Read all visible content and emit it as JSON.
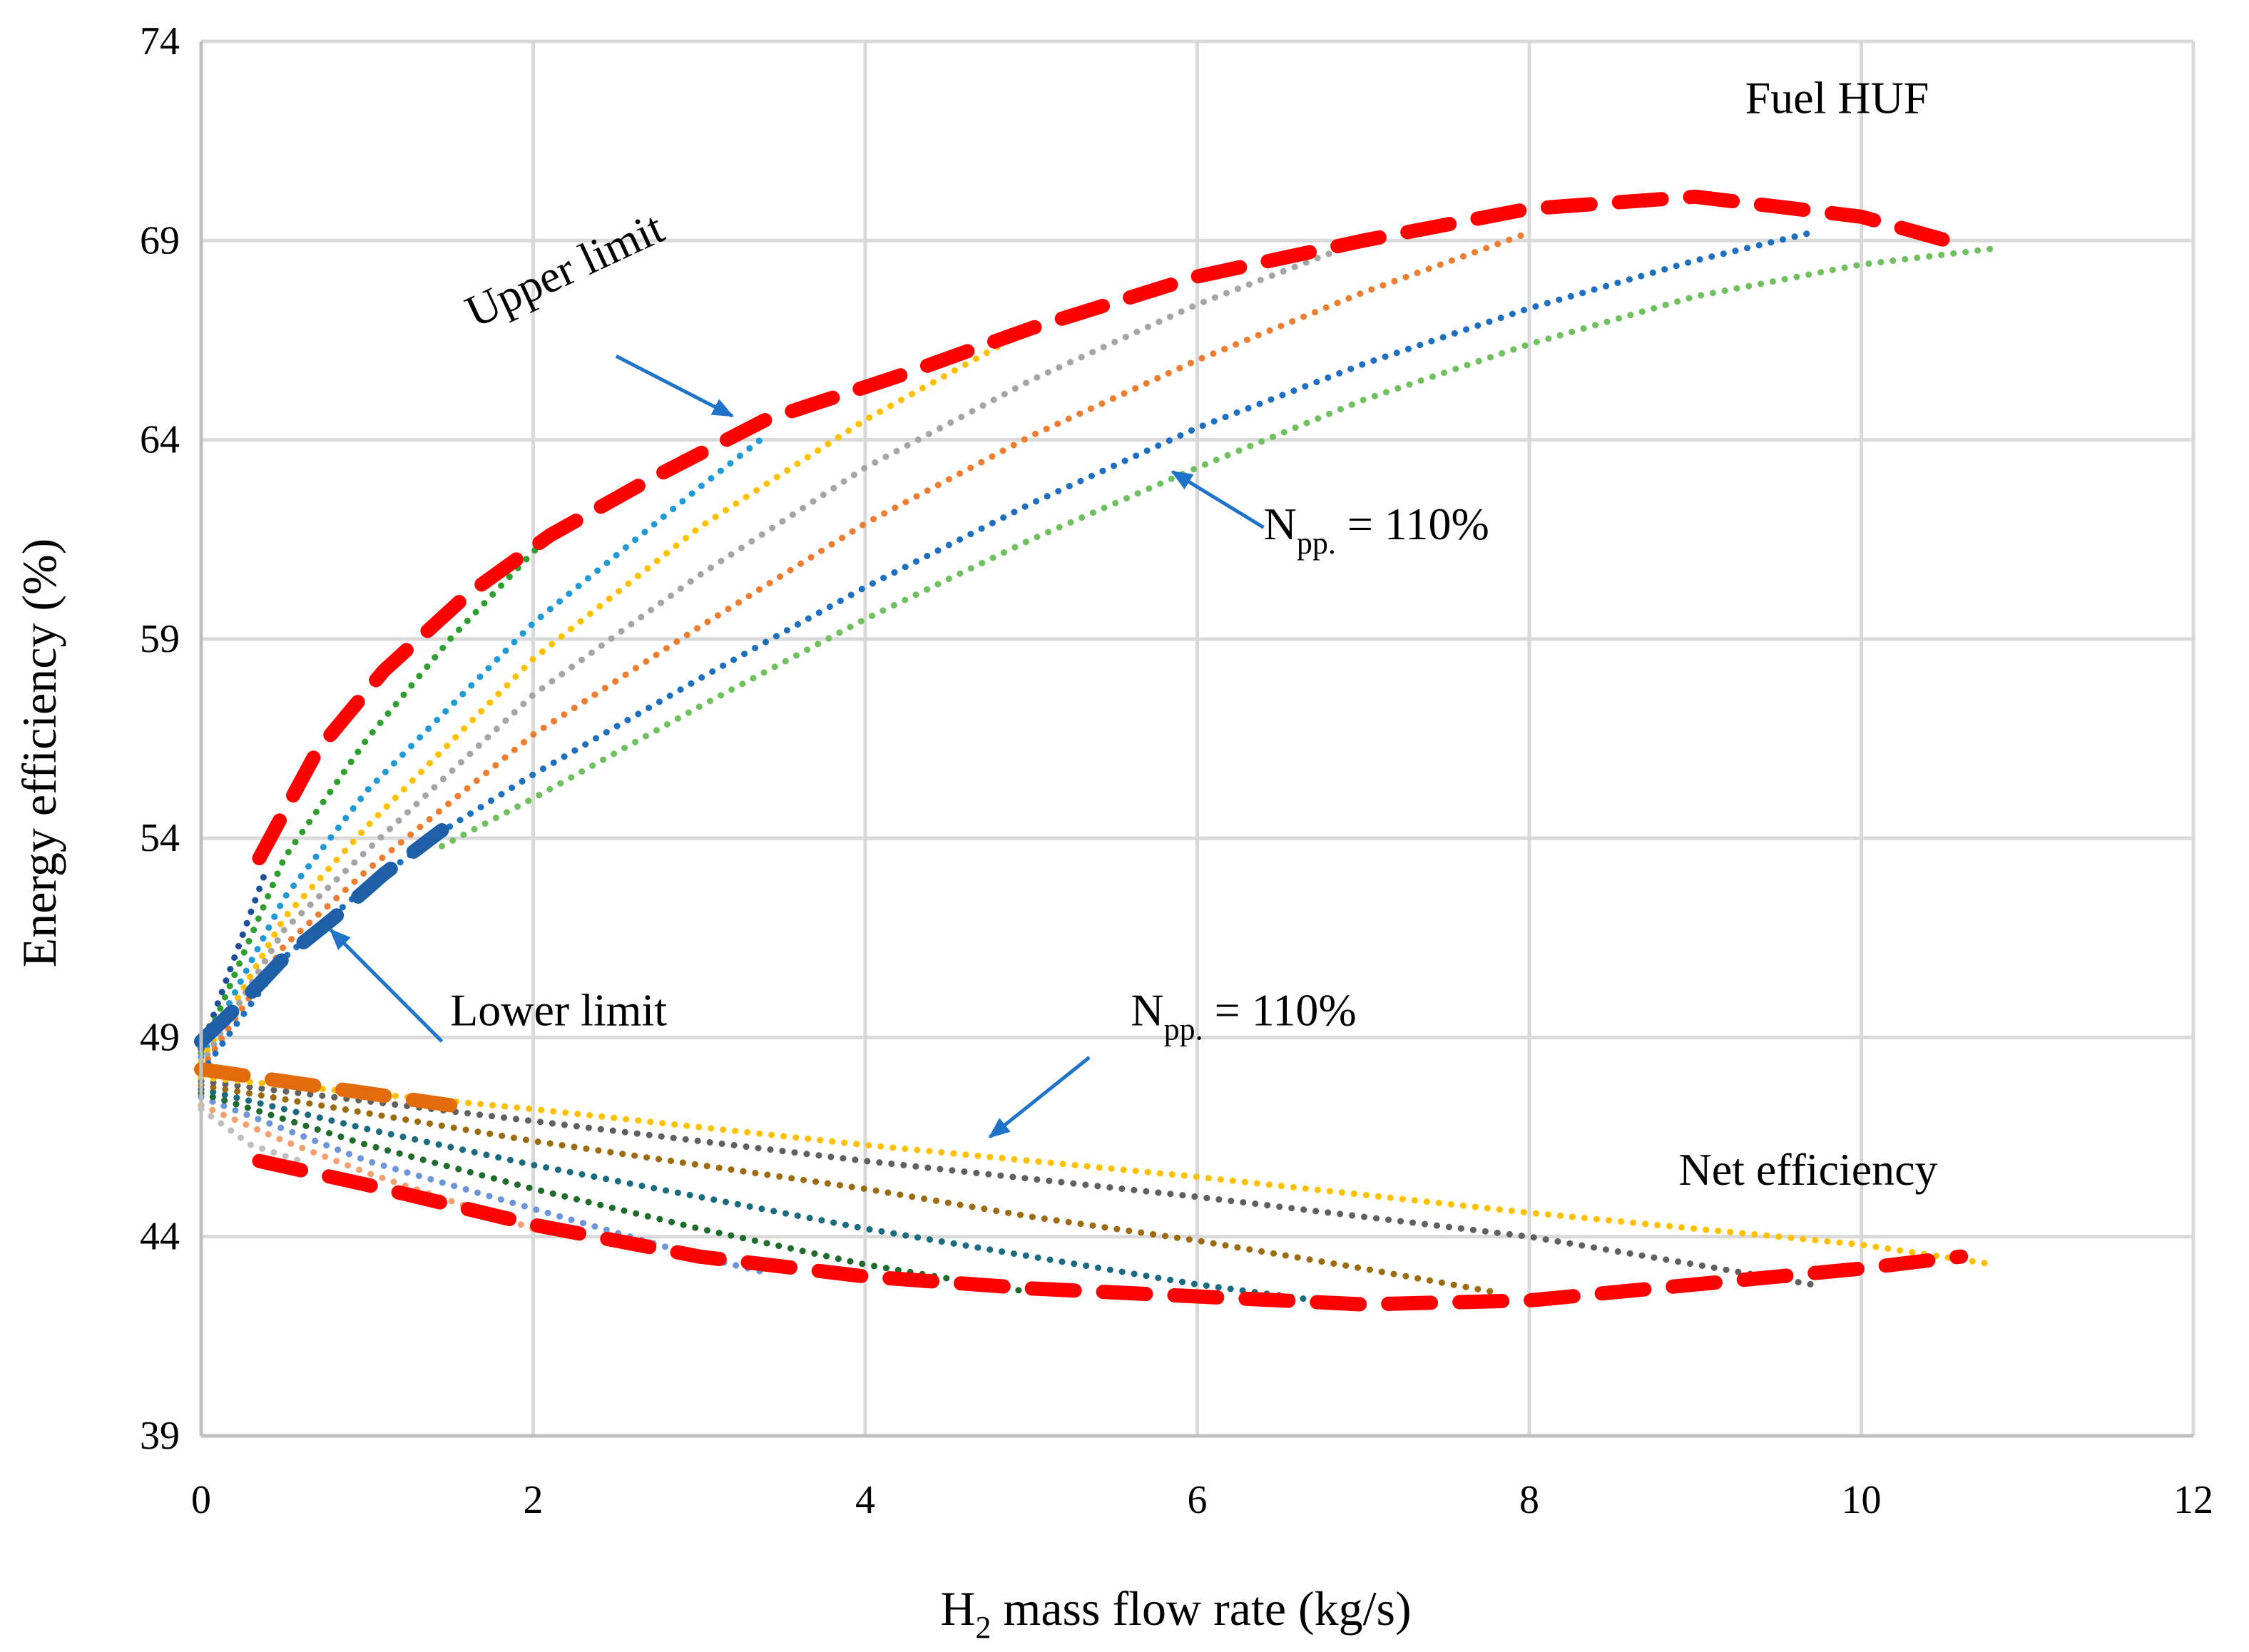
{
  "chart_data": {
    "type": "line",
    "xlabel": {
      "main": "H",
      "sub": "2",
      "rest": " mass flow rate (kg/s)"
    },
    "ylabel": "Energy efficiency (%)",
    "xlim": [
      0,
      12
    ],
    "ylim": [
      39,
      74
    ],
    "xticks": [
      0,
      2,
      4,
      6,
      8,
      10,
      12
    ],
    "yticks": [
      39,
      44,
      49,
      54,
      59,
      64,
      69,
      74
    ],
    "grid": true,
    "colors": {
      "green": "#2e9e2e",
      "skyblue": "#1f9ad6",
      "yellow": "#ffc000",
      "gray": "#a5a5a5",
      "orange": "#ed7d31",
      "blue": "#1f6fc0",
      "lightgreen": "#70c060",
      "navy": "#1f4e99",
      "darkgreen": "#1e6b2c",
      "brown": "#9c6b10",
      "darkgray": "#606060",
      "salmon": "#f4a070",
      "cornflower": "#6f94d8",
      "lightgray": "#bfbfbf",
      "teal": "#1a6a80",
      "red": "#ff0000",
      "darkorange": "#e36c0a",
      "steelblue": "#1e5fa8",
      "arrow": "#1f73c8"
    },
    "series": [
      {
        "name": "Fuel HUF navy",
        "group": "Fuel HUF",
        "color": "navy",
        "style": "dotted",
        "x": [
          0,
          0.2,
          0.4
        ],
        "y": [
          48.7,
          51,
          53.3
        ]
      },
      {
        "name": "Fuel HUF green",
        "group": "Fuel HUF",
        "color": "green",
        "style": "dotted",
        "x": [
          0,
          0.5,
          1,
          1.5,
          2.05
        ],
        "y": [
          48.6,
          53.5,
          56.5,
          59.0,
          61.4
        ]
      },
      {
        "name": "Fuel HUF skyblue",
        "group": "Fuel HUF",
        "color": "skyblue",
        "style": "dotted",
        "x": [
          0,
          0.5,
          1,
          2,
          3,
          3.4
        ],
        "y": [
          48.5,
          52.5,
          55.2,
          59.4,
          62.8,
          64.1
        ]
      },
      {
        "name": "Fuel HUF yellow",
        "group": "Fuel HUF",
        "color": "yellow",
        "style": "dotted",
        "x": [
          0,
          0.5,
          1,
          2,
          3,
          4,
          5
        ],
        "y": [
          48.4,
          52.0,
          54.3,
          58.5,
          61.8,
          64.5,
          66.8
        ]
      },
      {
        "name": "Fuel HUF gray",
        "group": "Fuel HUF",
        "color": "gray",
        "style": "dotted",
        "x": [
          0,
          0.5,
          1,
          2,
          3,
          4,
          5,
          6,
          7
        ],
        "y": [
          48.3,
          51.7,
          53.7,
          57.6,
          60.6,
          63.3,
          65.5,
          67.4,
          69.0
        ]
      },
      {
        "name": "Fuel HUF orange",
        "group": "Fuel HUF",
        "color": "orange",
        "style": "dotted",
        "x": [
          0,
          0.5,
          1,
          2,
          3,
          4,
          5,
          6,
          7,
          8
        ],
        "y": [
          48.2,
          51.3,
          53.2,
          56.6,
          59.3,
          61.9,
          64.1,
          66.0,
          67.7,
          69.2
        ]
      },
      {
        "name": "Fuel HUF blue",
        "group": "Fuel HUF",
        "color": "blue",
        "style": "dotted",
        "x": [
          0,
          0.5,
          1,
          1.5,
          2,
          3,
          4,
          5,
          6,
          7,
          8,
          9,
          9.7
        ],
        "y": [
          48.1,
          51.0,
          52.8,
          54.3,
          55.6,
          58.0,
          60.3,
          62.4,
          64.3,
          65.9,
          67.3,
          68.5,
          69.2
        ]
      },
      {
        "name": "Fuel HUF N_pp 110%",
        "group": "Fuel HUF",
        "color": "lightgreen",
        "style": "dotted",
        "x": [
          1.45,
          2,
          3,
          4,
          5,
          6,
          7,
          8,
          9,
          10,
          10.8
        ],
        "y": [
          53.8,
          55.0,
          57.3,
          59.5,
          61.5,
          63.3,
          65.0,
          66.4,
          67.6,
          68.4,
          68.8
        ]
      },
      {
        "name": "Upper limit",
        "group": "Fuel HUF",
        "color": "red",
        "style": "dashed",
        "x": [
          0.35,
          0.7,
          1.1,
          1.6,
          2.1,
          2.7,
          3.4,
          4.2,
          5,
          6,
          7,
          8,
          9,
          10,
          10.6
        ],
        "y": [
          53.5,
          56.2,
          58.2,
          60.1,
          61.6,
          63.0,
          64.5,
          65.6,
          66.8,
          68.1,
          69.0,
          69.8,
          70.1,
          69.6,
          68.9
        ]
      },
      {
        "name": "Lower limit",
        "group": "Fuel HUF",
        "color": "steelblue",
        "style": "dashed",
        "x": [
          0,
          0.25,
          0.5,
          0.8,
          1.1,
          1.45
        ],
        "y": [
          48.9,
          49.9,
          51.0,
          52.0,
          53.1,
          54.2
        ]
      },
      {
        "name": "Net efficiency lightgray",
        "group": "Net efficiency",
        "color": "lightgray",
        "style": "dotted",
        "x": [
          0,
          0.3,
          0.6
        ],
        "y": [
          47.2,
          46.3,
          45.9
        ]
      },
      {
        "name": "Net efficiency salmon",
        "group": "Net efficiency",
        "color": "salmon",
        "style": "dotted",
        "x": [
          0,
          0.5,
          1,
          1.5,
          2
        ],
        "y": [
          47.3,
          46.4,
          45.6,
          44.9,
          44.2
        ]
      },
      {
        "name": "Net efficiency cornflower",
        "group": "Net efficiency",
        "color": "cornflower",
        "style": "dotted",
        "x": [
          0,
          1,
          2,
          3,
          3.4
        ],
        "y": [
          47.5,
          45.9,
          44.7,
          43.5,
          43.1
        ]
      },
      {
        "name": "Net efficiency darkgreen",
        "group": "Net efficiency",
        "color": "darkgreen",
        "style": "dotted",
        "x": [
          0,
          1,
          2,
          3,
          4,
          5
        ],
        "y": [
          47.6,
          46.3,
          45.2,
          44.2,
          43.3,
          42.6
        ]
      },
      {
        "name": "Net efficiency teal",
        "group": "Net efficiency",
        "color": "teal",
        "style": "dotted",
        "x": [
          0,
          1,
          2,
          3,
          4,
          5,
          6,
          6.9
        ],
        "y": [
          47.7,
          46.7,
          45.8,
          45.0,
          44.2,
          43.5,
          42.8,
          42.3
        ]
      },
      {
        "name": "Net efficiency brown",
        "group": "Net efficiency",
        "color": "brown",
        "style": "dotted",
        "x": [
          0,
          1,
          2,
          3,
          4,
          5,
          6,
          7,
          7.8
        ],
        "y": [
          47.8,
          47.1,
          46.4,
          45.8,
          45.2,
          44.5,
          43.9,
          43.2,
          42.6
        ]
      },
      {
        "name": "Net efficiency darkgray",
        "group": "Net efficiency",
        "color": "darkgray",
        "style": "dotted",
        "x": [
          0,
          2,
          4,
          6,
          8,
          9,
          9.7
        ],
        "y": [
          47.9,
          46.9,
          45.9,
          45.0,
          44.0,
          43.3,
          42.8
        ]
      },
      {
        "name": "Net efficiency N_pp 110%",
        "group": "Net efficiency",
        "color": "yellow",
        "style": "dotted",
        "x": [
          0,
          2,
          4,
          6,
          8,
          10,
          10.8
        ],
        "y": [
          48.0,
          47.2,
          46.3,
          45.5,
          44.6,
          43.8,
          43.3
        ]
      },
      {
        "name": "Net upper dashed",
        "group": "Net efficiency",
        "color": "darkorange",
        "style": "dashed",
        "x": [
          0,
          0.5,
          1,
          1.5
        ],
        "y": [
          48.2,
          47.9,
          47.6,
          47.3
        ]
      },
      {
        "name": "Net lower limit",
        "group": "Net efficiency",
        "color": "red",
        "style": "dashed",
        "x": [
          0.35,
          1,
          2,
          3,
          4,
          5,
          6,
          7,
          8,
          9,
          10,
          10.6
        ],
        "y": [
          45.9,
          45.3,
          44.3,
          43.5,
          43.0,
          42.7,
          42.5,
          42.3,
          42.4,
          42.8,
          43.2,
          43.5
        ]
      }
    ],
    "annotations": [
      {
        "id": "fuel-huf",
        "text": "Fuel HUF",
        "x": 9.3,
        "y": 72.2
      },
      {
        "id": "upper-limit",
        "text": "Upper limit",
        "x": 1.65,
        "y": 66.8,
        "rotate": -25
      },
      {
        "id": "lower-limit",
        "text": "Lower limit",
        "x": 1.5,
        "y": 49.3
      },
      {
        "id": "net-efficiency",
        "text": "Net efficiency",
        "x": 8.9,
        "y": 45.3
      },
      {
        "id": "npp-fuel",
        "text": "N",
        "sub": "pp.",
        "rest": " = 110%",
        "x": 6.4,
        "y": 61.5
      },
      {
        "id": "npp-net",
        "text": "N",
        "sub": "pp.",
        "rest": " = 110%",
        "x": 5.6,
        "y": 49.3
      }
    ],
    "arrows": [
      {
        "id": "upper-limit-arrow",
        "from": [
          2.5,
          66.1
        ],
        "to": [
          3.2,
          64.6
        ]
      },
      {
        "id": "npp-fuel-arrow",
        "from": [
          6.4,
          61.8
        ],
        "to": [
          5.85,
          63.2
        ]
      },
      {
        "id": "lower-limit-arrow",
        "from": [
          1.45,
          48.9
        ],
        "to": [
          0.78,
          51.7
        ]
      },
      {
        "id": "npp-net-arrow",
        "from": [
          5.35,
          48.5
        ],
        "to": [
          4.75,
          46.5
        ]
      }
    ]
  }
}
